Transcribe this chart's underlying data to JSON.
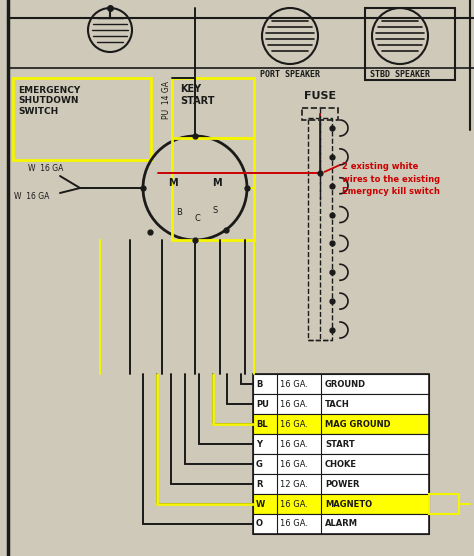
{
  "bg_color": "#cec9b8",
  "wire_table": [
    {
      "code": "B",
      "gauge": "16 GA.",
      "label": "GROUND",
      "highlight": false
    },
    {
      "code": "PU",
      "gauge": "16 GA.",
      "label": "TACH",
      "highlight": false
    },
    {
      "code": "BL",
      "gauge": "16 GA.",
      "label": "MAG GROUND",
      "highlight": true
    },
    {
      "code": "Y",
      "gauge": "16 GA.",
      "label": "START",
      "highlight": false
    },
    {
      "code": "G",
      "gauge": "16 GA.",
      "label": "CHOKE",
      "highlight": false
    },
    {
      "code": "R",
      "gauge": "12 GA.",
      "label": "POWER",
      "highlight": false
    },
    {
      "code": "W",
      "gauge": "16 GA.",
      "label": "MAGNETO",
      "highlight": true
    },
    {
      "code": "O",
      "gauge": "16 GA.",
      "label": "ALARM",
      "highlight": false
    }
  ],
  "highlight_color": "#ffff00",
  "annotation_color": "#cc0000",
  "annotation_text": "2 existing white\nwires to the existing\nEmergncy kill switch",
  "box_color_yellow": "#f5f500",
  "wire_color_yellow": "#f5f500",
  "wire_color_black": "#1a1a1a",
  "wire_color_red": "#cc0000"
}
